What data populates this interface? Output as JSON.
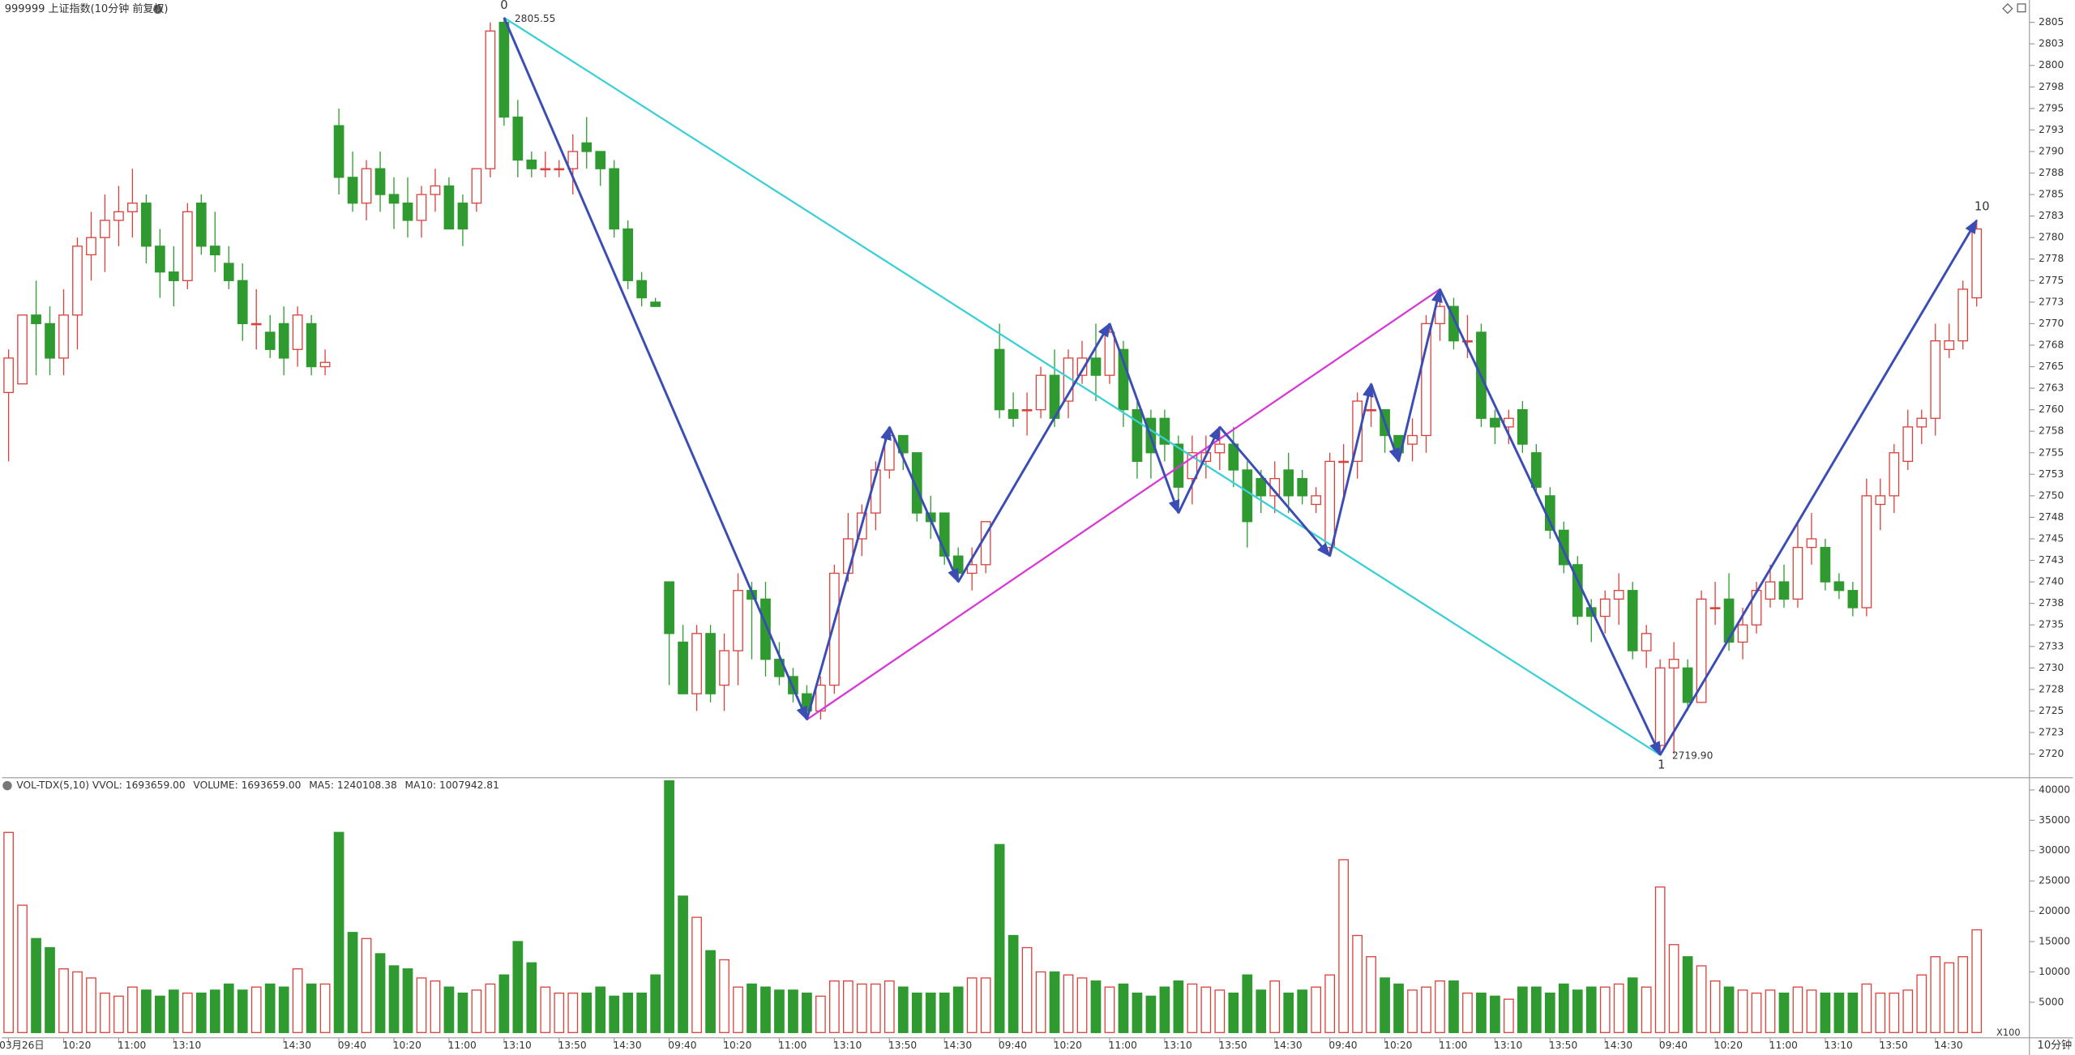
{
  "chart_data": {
    "type": "candlestick",
    "title": "999999 上证指数(10分钟 前复权)",
    "volume_header": [
      "VOL-TDX(5,10) VVOL: 1693659.00",
      "VOLUME: 1693659.00",
      "MA5: 1240108.38",
      "MA10: 1007942.81"
    ],
    "volume_header_colors": [
      "#333333",
      "#2a7fb8",
      "#2a7fb8",
      "#7a1f6e"
    ],
    "volume_unit": "X100",
    "period": "10分钟",
    "wave_labels": [
      "0",
      "1",
      "10"
    ],
    "price_labels": [
      "2805.55",
      "2719.90"
    ],
    "up_color": "#d9413b",
    "down_color": "#2f9a2f",
    "wave_color": "#3a4db5",
    "trend_color": "#3ccfd6",
    "link_color": "#d63ad6",
    "x": [
      "03月26日",
      null,
      null,
      null,
      "10:20",
      null,
      null,
      null,
      "11:00",
      null,
      null,
      null,
      "13:10",
      null,
      null,
      null,
      null,
      null,
      null,
      null,
      "14:30",
      null,
      null,
      null,
      "09:40",
      null,
      null,
      null,
      "10:20",
      null,
      null,
      null,
      "11:00",
      null,
      null,
      null,
      "13:10",
      null,
      null,
      null,
      "13:50",
      null,
      null,
      null,
      "14:30",
      null,
      null,
      null,
      "09:40",
      null,
      null,
      null,
      "10:20",
      null,
      null,
      null,
      "11:00",
      null,
      null,
      null,
      "13:10",
      null,
      null,
      null,
      "13:50",
      null,
      null,
      null,
      "14:30",
      null,
      null,
      null,
      "09:40",
      null,
      null,
      null,
      "10:20",
      null,
      null,
      null,
      "11:00",
      null,
      null,
      null,
      "13:10",
      null,
      null,
      null,
      "13:50",
      null,
      null,
      null,
      "14:30",
      null,
      null,
      null,
      "09:40",
      null,
      null,
      null,
      "10:20",
      null,
      null,
      null,
      "11:00",
      null,
      null,
      null,
      "13:10",
      null,
      null,
      null,
      "13:50",
      null,
      null,
      null,
      "14:30",
      null,
      null,
      null,
      "09:40",
      null,
      null,
      null,
      "10:20",
      null,
      null,
      null,
      "11:00",
      null,
      null,
      null,
      "13:10",
      null,
      null,
      null,
      "13:50",
      null,
      null,
      null,
      "14:30",
      null,
      null,
      null
    ],
    "open": [
      2762,
      2763,
      2771,
      2770,
      2766,
      2771,
      2778,
      2780,
      2782,
      2783,
      2784,
      2779,
      2776,
      2775,
      2784,
      2779,
      2777,
      2775,
      2770,
      2769,
      2770,
      2767,
      2770,
      2765,
      2793,
      2787,
      2784,
      2788,
      2785,
      2784,
      2782,
      2785,
      2786,
      2784,
      2784,
      2788,
      2805,
      2794,
      2789,
      2788,
      2788,
      2788,
      2791,
      2790,
      2788,
      2781,
      2775,
      2772.5,
      2740,
      2733,
      2727,
      2734,
      2728,
      2732,
      2739,
      2738,
      2731,
      2729,
      2727,
      2725,
      2728,
      2741,
      2745,
      2748,
      2753,
      2757,
      2755,
      2748,
      2748,
      2743,
      2741,
      2742,
      2767,
      2760,
      2760,
      2760,
      2764,
      2761,
      2764,
      2766,
      2764,
      2767,
      2760,
      2759,
      2759,
      2756,
      2752,
      2754,
      2755,
      2756,
      2753,
      2752,
      2750,
      2753,
      2752,
      2749,
      2744,
      2754,
      2754,
      2760,
      2760,
      2757,
      2756,
      2757,
      2770,
      2772,
      2768,
      2769,
      2759,
      2758,
      2760,
      2755,
      2750,
      2746,
      2742,
      2737,
      2736,
      2738,
      2739,
      2732,
      2721,
      2730,
      2730,
      2726,
      2737,
      2738,
      2733,
      2735,
      2738,
      2740,
      2738,
      2744,
      2744,
      2740,
      2739,
      2737,
      2749,
      2750,
      2754,
      2758,
      2759,
      2767,
      2768,
      2773
    ],
    "high": [
      2767,
      2771,
      2775,
      2772,
      2774,
      2780,
      2783,
      2785,
      2786,
      2788,
      2785,
      2781,
      2779,
      2784,
      2785,
      2783,
      2779,
      2777,
      2774,
      2771,
      2772,
      2772,
      2771,
      2767,
      2795,
      2790,
      2789,
      2790,
      2787,
      2787,
      2786,
      2788,
      2787,
      2785,
      2788,
      2805,
      2805.55,
      2796,
      2790,
      2790,
      2789,
      2792,
      2794,
      2790,
      2789,
      2782,
      2776,
      2773,
      2740,
      2735,
      2735,
      2735,
      2734,
      2741,
      2740,
      2740,
      2733,
      2730,
      2728,
      2729,
      2742,
      2748,
      2749,
      2754,
      2758,
      2757,
      2755,
      2750,
      2748,
      2744,
      2744,
      2747,
      2770,
      2762,
      2762,
      2765,
      2767,
      2767,
      2768,
      2770,
      2770,
      2768,
      2761,
      2760,
      2760,
      2757,
      2757,
      2757,
      2758,
      2758,
      2754,
      2753,
      2754,
      2755,
      2753,
      2751,
      2755,
      2756,
      2762,
      2763,
      2760,
      2757,
      2759,
      2771,
      2774,
      2773,
      2771,
      2770,
      2760,
      2760,
      2761,
      2756,
      2751,
      2747,
      2743,
      2738,
      2739,
      2741,
      2740,
      2735,
      2731,
      2733,
      2731,
      2739,
      2740,
      2741,
      2737,
      2740,
      2742,
      2742,
      2747,
      2748,
      2745,
      2741,
      2740,
      2752,
      2752,
      2756,
      2760,
      2760,
      2770,
      2770,
      2775,
      2782
    ],
    "low": [
      2754,
      2763,
      2764,
      2764,
      2764,
      2767,
      2775,
      2776,
      2779,
      2780,
      2777,
      2773,
      2772,
      2774,
      2778,
      2776,
      2774,
      2768,
      2767,
      2766,
      2764,
      2765,
      2764,
      2764,
      2785,
      2783,
      2782,
      2783,
      2781,
      2780,
      2780,
      2783,
      2781,
      2779,
      2783,
      2787,
      2793,
      2787,
      2787,
      2787,
      2787,
      2785,
      2788,
      2786,
      2780,
      2774,
      2772,
      2772,
      2728,
      2727,
      2725,
      2726,
      2725,
      2728,
      2731,
      2729,
      2728,
      2726,
      2724,
      2724,
      2727,
      2740,
      2743,
      2746,
      2752,
      2753,
      2747,
      2745,
      2742,
      2740,
      2739,
      2741,
      2759,
      2758,
      2757,
      2759,
      2758,
      2759,
      2763,
      2761,
      2763,
      2758,
      2752,
      2752,
      2754,
      2748,
      2749,
      2752,
      2753,
      2751,
      2744,
      2748,
      2748,
      2748,
      2749,
      2748,
      2743,
      2750,
      2752,
      2758,
      2755,
      2754,
      2754,
      2755,
      2768,
      2767,
      2766,
      2758,
      2756,
      2756,
      2755,
      2750,
      2745,
      2741,
      2735,
      2733,
      2734,
      2735,
      2731,
      2730,
      2719.9,
      2720,
      2725,
      2726,
      2735,
      2732,
      2731,
      2734,
      2737,
      2737,
      2737,
      2742,
      2739,
      2738,
      2736,
      2736,
      2746,
      2748,
      2753,
      2756,
      2757,
      2766,
      2767,
      2772
    ],
    "close": [
      2766,
      2771,
      2770,
      2766,
      2771,
      2779,
      2780,
      2782,
      2783,
      2784,
      2779,
      2776,
      2775,
      2783,
      2779,
      2778,
      2775,
      2770,
      2770,
      2767,
      2766,
      2771,
      2765,
      2765.5,
      2787,
      2784,
      2788,
      2785,
      2784,
      2782,
      2785,
      2786,
      2781,
      2781,
      2788,
      2804,
      2794,
      2789,
      2788,
      2788,
      2788,
      2790,
      2790,
      2788,
      2781,
      2775,
      2773,
      2772,
      2734,
      2727,
      2734,
      2727,
      2732,
      2739,
      2738,
      2731,
      2729,
      2727,
      2725,
      2728,
      2741,
      2745,
      2748,
      2753,
      2757,
      2755,
      2748,
      2747,
      2743,
      2741,
      2742,
      2747,
      2760,
      2759,
      2760,
      2764,
      2759,
      2766,
      2766,
      2764,
      2769,
      2760,
      2754,
      2755,
      2756,
      2751,
      2755,
      2755,
      2756,
      2753,
      2747,
      2750,
      2752,
      2750,
      2750,
      2750,
      2754,
      2754,
      2761,
      2760,
      2757,
      2755,
      2757,
      2770,
      2772,
      2768,
      2768,
      2759,
      2758,
      2759,
      2756,
      2751,
      2746,
      2742,
      2736,
      2736,
      2738,
      2739,
      2732,
      2734,
      2730,
      2731,
      2726,
      2738,
      2737,
      2733,
      2735,
      2739,
      2740,
      2738,
      2744,
      2745,
      2740,
      2739,
      2737,
      2750,
      2750,
      2755,
      2758,
      2759,
      2768,
      2768,
      2774,
      2781
    ],
    "volume": [
      33000,
      21000,
      15500,
      14000,
      10500,
      10000,
      9000,
      6500,
      6000,
      7500,
      7000,
      6000,
      7000,
      6500,
      6500,
      7000,
      8000,
      7000,
      7500,
      8000,
      7500,
      10500,
      8000,
      8000,
      33000,
      16500,
      15500,
      13000,
      11000,
      10500,
      9000,
      8500,
      7500,
      6500,
      7000,
      8000,
      9500,
      15000,
      11500,
      7500,
      6500,
      6500,
      6500,
      7500,
      6000,
      6500,
      6500,
      9500,
      41500,
      22500,
      19000,
      13500,
      12000,
      7500,
      8000,
      7500,
      7000,
      7000,
      6500,
      6000,
      8500,
      8500,
      8000,
      8000,
      8500,
      7500,
      6500,
      6500,
      6500,
      7500,
      9000,
      9000,
      31000,
      16000,
      14000,
      10000,
      10000,
      9500,
      9000,
      8500,
      7500,
      8000,
      6500,
      6000,
      7500,
      8500,
      8000,
      7500,
      7000,
      6500,
      9500,
      7000,
      8500,
      6500,
      7000,
      7500,
      9500,
      28500,
      16000,
      12500,
      9000,
      8000,
      7000,
      7500,
      8500,
      8500,
      6500,
      6500,
      6000,
      5500,
      7500,
      7500,
      6500,
      8000,
      7000,
      7500,
      7500,
      8000,
      9000,
      7500,
      24000,
      14500,
      12500,
      11000,
      8500,
      7500,
      7000,
      6500,
      7000,
      6500,
      7500,
      7000,
      6500,
      6500,
      6500,
      8000,
      6500,
      6500,
      7000,
      9500,
      12500,
      11500,
      12500,
      16936.59
    ],
    "ylim": [
      2717.4,
      2807.6
    ],
    "yticks": [
      2720,
      {
        "value": 2722.5,
        "label": "2723"
      },
      2725,
      {
        "value": 2727.5,
        "label": "2728"
      },
      2730,
      {
        "value": 2732.5,
        "label": "2733"
      },
      2735,
      {
        "value": 2737.5,
        "label": "2738"
      },
      2740,
      {
        "value": 2742.5,
        "label": "2743"
      },
      2745,
      {
        "value": 2747.5,
        "label": "2748"
      },
      2750,
      {
        "value": 2752.5,
        "label": "2753"
      },
      2755,
      {
        "value": 2757.5,
        "label": "2758"
      },
      2760,
      {
        "value": 2762.5,
        "label": "2763"
      },
      2765,
      {
        "value": 2767.5,
        "label": "2768"
      },
      2770,
      {
        "value": 2772.5,
        "label": "2773"
      },
      2775,
      {
        "value": 2777.5,
        "label": "2778"
      },
      2780,
      {
        "value": 2782.5,
        "label": "2783"
      },
      2785,
      {
        "value": 2787.5,
        "label": "2788"
      },
      2790,
      {
        "value": 2792.5,
        "label": "2793"
      },
      2795,
      {
        "value": 2797.5,
        "label": "2798"
      },
      2800,
      {
        "value": 2802.5,
        "label": "2803"
      },
      2805
    ],
    "vlim": [
      0,
      41800
    ],
    "vticks": [
      5000,
      10000,
      15000,
      20000,
      25000,
      30000,
      35000,
      40000
    ]
  }
}
